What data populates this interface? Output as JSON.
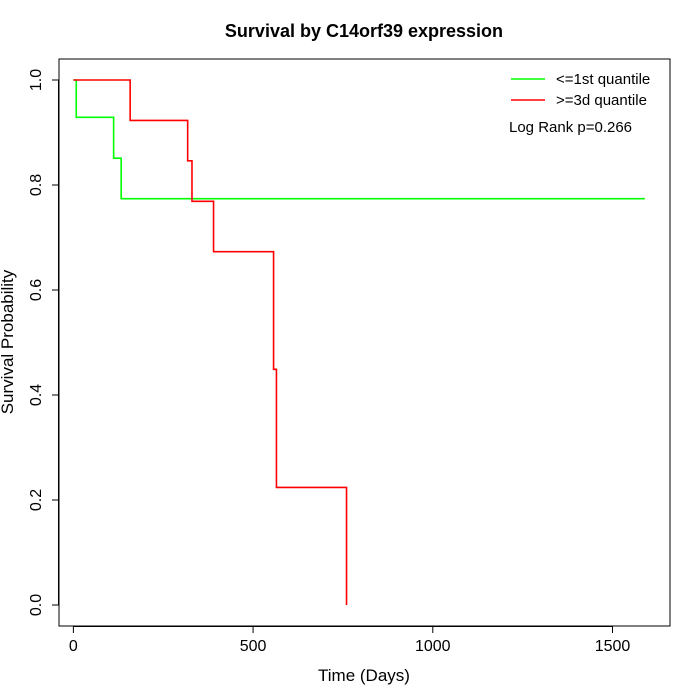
{
  "chart_data": {
    "type": "line",
    "title": "Survival by C14orf39 expression",
    "xlabel": "Time (Days)",
    "ylabel": "Survival Probability",
    "xlim": [
      -40,
      1660
    ],
    "ylim": [
      -0.04,
      1.04
    ],
    "x_ticks": [
      0,
      500,
      1000,
      1500
    ],
    "x_tick_labels": [
      "0",
      "500",
      "1000",
      "1500"
    ],
    "y_ticks": [
      0.0,
      0.2,
      0.4,
      0.6,
      0.8,
      1.0
    ],
    "y_tick_labels": [
      "0.0",
      "0.2",
      "0.4",
      "0.6",
      "0.8",
      "1.0"
    ],
    "grid": false,
    "legend_position": "top-right",
    "annotation": "Log Rank p=0.266",
    "series": [
      {
        "name": "<=1st quantile",
        "color": "#00ff00",
        "step": true,
        "x": [
          0,
          8,
          112,
          133,
          1590
        ],
        "y": [
          1.0,
          0.929,
          0.851,
          0.774,
          0.774
        ]
      },
      {
        "name": ">=3d quantile",
        "color": "#ff0000",
        "step": true,
        "x": [
          0,
          158,
          318,
          330,
          390,
          557,
          565,
          760
        ],
        "y": [
          1.0,
          0.923,
          0.846,
          0.769,
          0.673,
          0.449,
          0.224,
          0.0
        ]
      }
    ]
  }
}
